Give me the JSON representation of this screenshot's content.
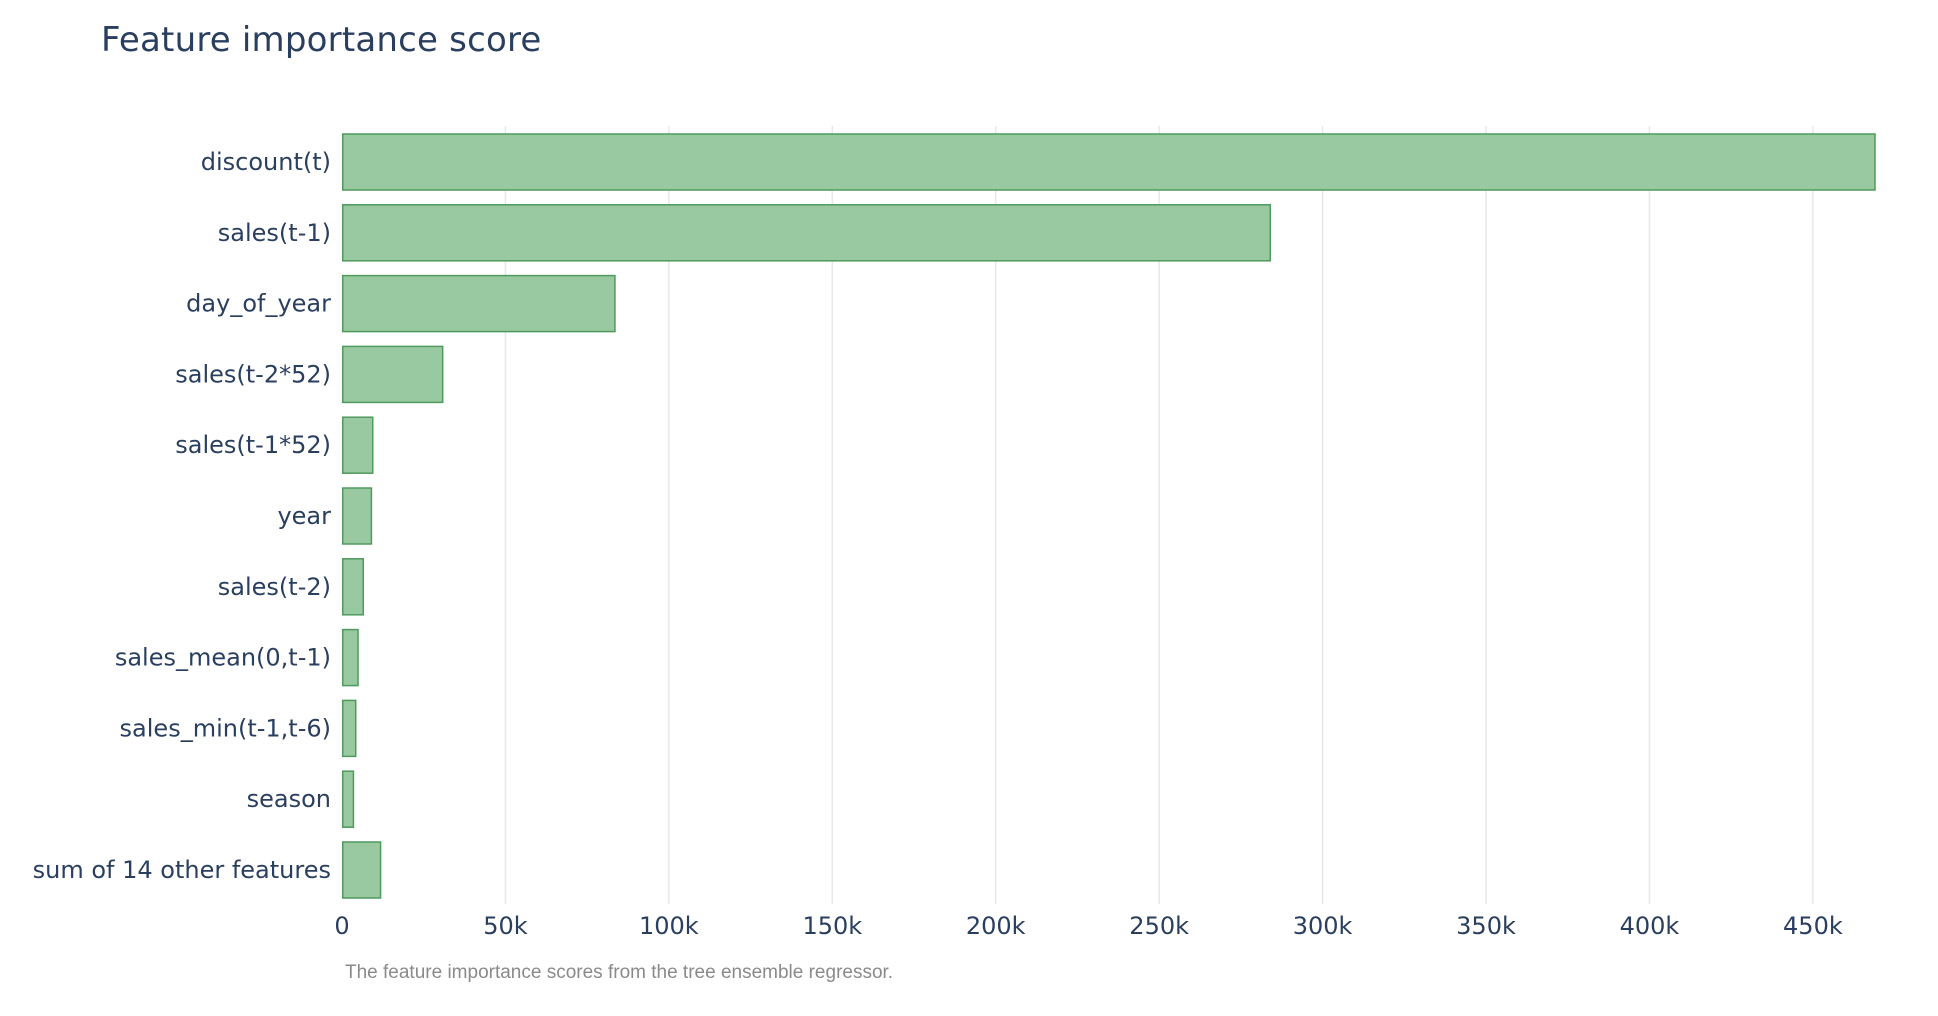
{
  "chart_data": {
    "type": "bar",
    "orientation": "horizontal",
    "title": "Feature importance score",
    "caption": "The feature importance scores from the tree ensemble regressor.",
    "categories": [
      "discount(t)",
      "sales(t-1)",
      "day_of_year",
      "sales(t-2*52)",
      "sales(t-1*52)",
      "year",
      "sales(t-2)",
      "sales_mean(0,t-1)",
      "sales_min(t-1,t-6)",
      "season",
      "sum of 14 other features"
    ],
    "values": [
      469000,
      284000,
      83500,
      30800,
      9400,
      9000,
      6500,
      4900,
      4200,
      3500,
      11800
    ],
    "x_ticks": [
      0,
      50000,
      100000,
      150000,
      200000,
      250000,
      300000,
      350000,
      400000,
      450000
    ],
    "x_tick_labels": [
      "0",
      "50k",
      "100k",
      "150k",
      "200k",
      "250k",
      "300k",
      "350k",
      "400k",
      "450k"
    ],
    "xlim": [
      0,
      469000
    ],
    "xlabel": "",
    "ylabel": "",
    "grid": "vertical",
    "colors": {
      "bar_fill": "#99c9a0",
      "bar_stroke": "#4f9a5e",
      "grid": "#e8e8e8",
      "text": "#2a3f5f",
      "caption": "#8a8a8a"
    }
  }
}
